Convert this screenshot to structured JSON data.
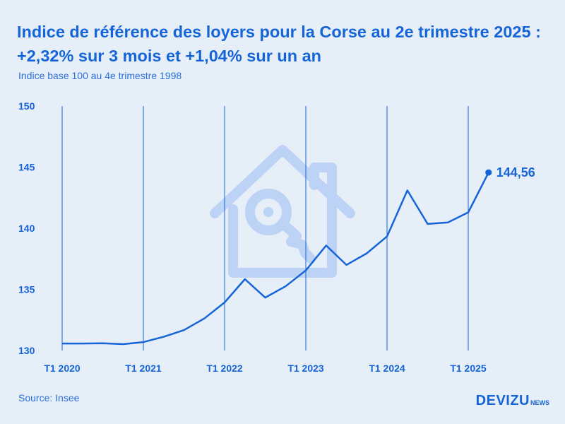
{
  "header": {
    "title": "Indice de référence des loyers pour la Corse au 2e trimestre 2025 : +2,32% sur 3 mois et +1,04% sur un an",
    "subtitle": "Indice base 100 au 4e trimestre 1998"
  },
  "footer": {
    "source": "Source: Insee",
    "brand_main": "DEVIZU",
    "brand_sub": "NEWS"
  },
  "colors": {
    "background": "#e6eef8",
    "accent": "#1565d8",
    "watermark": "#bcd3f5"
  },
  "watermark_icon": "house-key-icon",
  "chart_data": {
    "type": "line",
    "title": "Indice de référence des loyers pour la Corse au 2e trimestre 2025 : +2,32% sur 3 mois et +1,04% sur un an",
    "subtitle": "Indice base 100 au 4e trimestre 1998",
    "xlabel": "",
    "ylabel": "",
    "ylim": [
      130,
      150
    ],
    "yticks": [
      130,
      135,
      140,
      145,
      150
    ],
    "x_tick_labels": [
      "T1 2020",
      "T1 2021",
      "T1 2022",
      "T1 2023",
      "T1 2024",
      "T1 2025"
    ],
    "x": [
      "T1 2020",
      "T2 2020",
      "T3 2020",
      "T4 2020",
      "T1 2021",
      "T2 2021",
      "T3 2021",
      "T4 2021",
      "T1 2022",
      "T2 2022",
      "T3 2022",
      "T4 2022",
      "T1 2023",
      "T2 2023",
      "T3 2023",
      "T4 2023",
      "T1 2024",
      "T2 2024",
      "T3 2024",
      "T4 2024",
      "T1 2025",
      "T2 2025"
    ],
    "series": [
      {
        "values": [
          130.57,
          130.57,
          130.59,
          130.52,
          130.69,
          131.12,
          131.67,
          132.62,
          133.93,
          135.84,
          134.33,
          135.25,
          136.55,
          138.59,
          137.0,
          137.95,
          139.33,
          143.1,
          140.35,
          140.48,
          141.3,
          144.56
        ]
      }
    ],
    "last_value_label": "144,56",
    "grid": "vertical lines at T1 of each year",
    "legend": "none"
  }
}
